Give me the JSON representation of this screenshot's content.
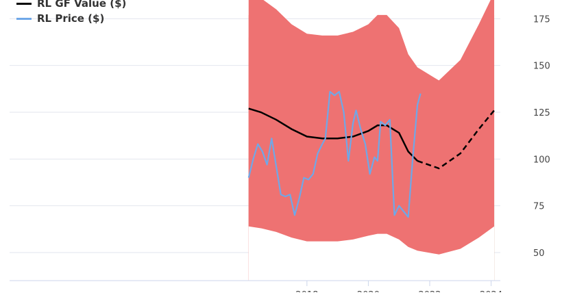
{
  "chart_data": {
    "type": "line",
    "legend_placement": "top-left",
    "grid": true,
    "ylim": [
      35,
      185
    ],
    "xlim": [
      2008.0,
      2024.3
    ],
    "yticks": [
      "50",
      "75",
      "100",
      "125",
      "150",
      "175"
    ],
    "xticks": [
      "2018",
      "2020",
      "2022",
      "2024"
    ],
    "series": [
      {
        "name": "RL GF Value ($)",
        "color": "#000000",
        "projected_from": 2021.6,
        "x": [
          2016.1,
          2016.5,
          2017.0,
          2017.5,
          2018.0,
          2018.5,
          2019.0,
          2019.5,
          2020.0,
          2020.3,
          2020.6,
          2021.0,
          2021.3,
          2021.6,
          2022.3,
          2023.0,
          2023.6,
          2024.1
        ],
        "values": [
          127,
          125,
          121,
          116,
          112,
          111,
          111,
          112,
          115,
          118,
          118,
          114,
          104,
          99,
          95,
          103,
          116,
          126
        ]
      },
      {
        "name": "RL Price ($)",
        "color": "#6fa8e8",
        "x": [
          2016.1,
          2016.25,
          2016.4,
          2016.55,
          2016.7,
          2016.85,
          2017.0,
          2017.15,
          2017.3,
          2017.45,
          2017.6,
          2017.75,
          2017.9,
          2018.05,
          2018.2,
          2018.35,
          2018.5,
          2018.6,
          2018.75,
          2018.9,
          2019.05,
          2019.2,
          2019.35,
          2019.5,
          2019.6,
          2019.75,
          2019.9,
          2020.05,
          2020.2,
          2020.3,
          2020.4,
          2020.55,
          2020.7,
          2020.85,
          2021.0,
          2021.15,
          2021.3,
          2021.45,
          2021.6,
          2021.7
        ],
        "values": [
          90,
          100,
          108,
          104,
          97,
          111,
          96,
          81,
          80,
          81,
          70,
          79,
          90,
          89,
          92,
          103,
          108,
          111,
          136,
          134,
          136,
          125,
          99,
          119,
          126,
          116,
          108,
          92,
          101,
          99,
          120,
          118,
          121,
          70,
          75,
          72,
          69,
          101,
          129,
          135
        ]
      }
    ],
    "bands": {
      "x": [
        2016.1,
        2016.5,
        2017.0,
        2017.5,
        2018.0,
        2018.5,
        2019.0,
        2019.5,
        2020.0,
        2020.3,
        2020.6,
        2021.0,
        2021.3,
        2021.6,
        2022.3,
        2023.0,
        2023.6,
        2024.1
      ],
      "levels": [
        [
          64,
          63,
          61,
          58,
          56,
          56,
          56,
          57,
          59,
          60,
          60,
          57,
          53,
          51,
          49,
          52,
          58,
          64
        ],
        [
          76,
          75,
          72,
          69,
          67,
          66,
          66,
          67,
          70,
          72,
          72,
          68,
          63,
          61,
          58,
          62,
          70,
          76
        ],
        [
          88,
          87,
          84,
          80,
          78,
          77,
          77,
          78,
          81,
          83,
          83,
          79,
          73,
          70,
          67,
          72,
          81,
          88
        ],
        [
          101,
          100,
          96,
          92,
          89,
          88,
          88,
          90,
          93,
          95,
          95,
          91,
          84,
          80,
          77,
          83,
          93,
          101
        ],
        [
          114,
          112,
          108,
          104,
          100,
          99,
          99,
          101,
          104,
          107,
          107,
          102,
          94,
          90,
          86,
          93,
          104,
          114
        ],
        [
          140,
          138,
          133,
          128,
          123,
          122,
          122,
          124,
          128,
          131,
          131,
          126,
          116,
          110,
          106,
          114,
          128,
          140
        ],
        [
          152,
          150,
          145,
          139,
          134,
          133,
          133,
          135,
          139,
          143,
          143,
          137,
          126,
          120,
          115,
          124,
          139,
          152
        ],
        [
          165,
          162,
          157,
          150,
          145,
          144,
          144,
          146,
          150,
          154,
          154,
          148,
          136,
          130,
          124,
          134,
          150,
          165
        ],
        [
          177,
          174,
          168,
          161,
          156,
          155,
          155,
          157,
          161,
          166,
          166,
          159,
          146,
          139,
          133,
          144,
          161,
          177
        ],
        [
          189,
          186,
          180,
          172,
          167,
          166,
          166,
          168,
          172,
          177,
          177,
          170,
          156,
          149,
          142,
          153,
          172,
          189
        ]
      ],
      "colors": [
        "#7ec97e",
        "#8fd28f",
        "#a9dca9",
        "#c8e8c8",
        "#e6f4e6",
        "#ffe7e7",
        "#ffd0d3",
        "#f3a8a8",
        "#e88888",
        "#ee7272"
      ]
    }
  }
}
